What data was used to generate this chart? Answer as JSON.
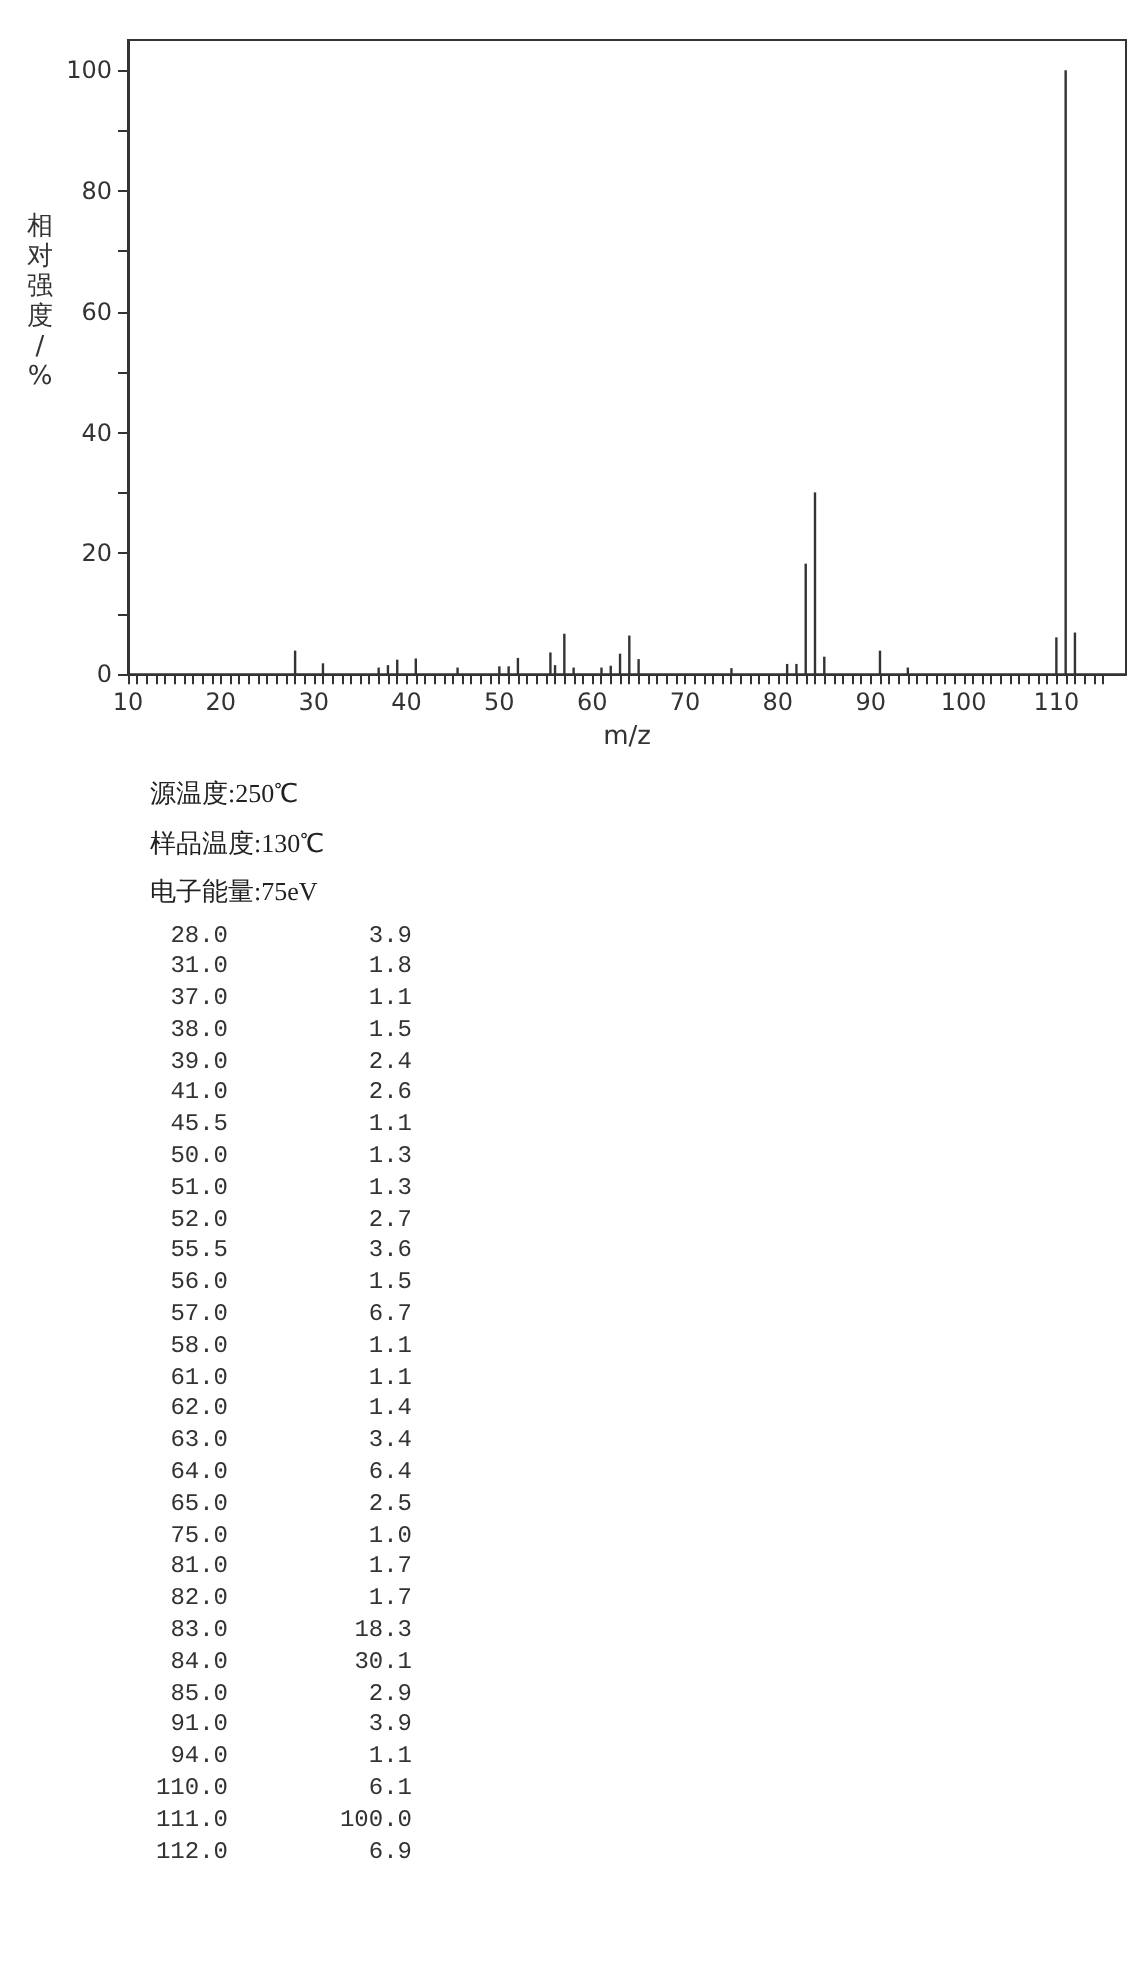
{
  "chart_data": [
    {
      "type": "bar",
      "xlabel": "m/z",
      "ylabel": "相对强度/%",
      "x": [
        28.0,
        31.0,
        37.0,
        38.0,
        39.0,
        41.0,
        45.5,
        50.0,
        51.0,
        52.0,
        55.5,
        56.0,
        57.0,
        58.0,
        61.0,
        62.0,
        63.0,
        64.0,
        65.0,
        75.0,
        81.0,
        82.0,
        83.0,
        84.0,
        85.0,
        91.0,
        94.0,
        110.0,
        111.0,
        112.0
      ],
      "values": [
        3.9,
        1.8,
        1.1,
        1.5,
        2.4,
        2.6,
        1.1,
        1.3,
        1.3,
        2.7,
        3.6,
        1.5,
        6.7,
        1.1,
        1.1,
        1.4,
        3.4,
        6.4,
        2.5,
        1.0,
        1.7,
        1.7,
        18.3,
        30.1,
        2.9,
        3.9,
        1.1,
        6.1,
        100.0,
        6.9
      ],
      "color": "#333333",
      "xlim": [
        10,
        117.5
      ],
      "xticks": [
        10,
        {
          "value": 11,
          "label": null
        },
        {
          "value": 12,
          "label": null
        },
        {
          "value": 13,
          "label": null
        },
        {
          "value": 14,
          "label": null
        },
        {
          "value": 15,
          "label": null
        },
        {
          "value": 16,
          "label": null
        },
        {
          "value": 17,
          "label": null
        },
        {
          "value": 18,
          "label": null
        },
        {
          "value": 19,
          "label": null
        },
        20,
        {
          "value": 21,
          "label": null
        },
        {
          "value": 22,
          "label": null
        },
        {
          "value": 23,
          "label": null
        },
        {
          "value": 24,
          "label": null
        },
        {
          "value": 25,
          "label": null
        },
        {
          "value": 26,
          "label": null
        },
        {
          "value": 27,
          "label": null
        },
        {
          "value": 28,
          "label": null
        },
        {
          "value": 29,
          "label": null
        },
        30,
        {
          "value": 31,
          "label": null
        },
        {
          "value": 32,
          "label": null
        },
        {
          "value": 33,
          "label": null
        },
        {
          "value": 34,
          "label": null
        },
        {
          "value": 35,
          "label": null
        },
        {
          "value": 36,
          "label": null
        },
        {
          "value": 37,
          "label": null
        },
        {
          "value": 38,
          "label": null
        },
        {
          "value": 39,
          "label": null
        },
        40,
        {
          "value": 41,
          "label": null
        },
        {
          "value": 42,
          "label": null
        },
        {
          "value": 43,
          "label": null
        },
        {
          "value": 44,
          "label": null
        },
        {
          "value": 45,
          "label": null
        },
        {
          "value": 46,
          "label": null
        },
        {
          "value": 47,
          "label": null
        },
        {
          "value": 48,
          "label": null
        },
        {
          "value": 49,
          "label": null
        },
        50,
        {
          "value": 51,
          "label": null
        },
        {
          "value": 52,
          "label": null
        },
        {
          "value": 53,
          "label": null
        },
        {
          "value": 54,
          "label": null
        },
        {
          "value": 55,
          "label": null
        },
        {
          "value": 56,
          "label": null
        },
        {
          "value": 57,
          "label": null
        },
        {
          "value": 58,
          "label": null
        },
        {
          "value": 59,
          "label": null
        },
        60,
        {
          "value": 61,
          "label": null
        },
        {
          "value": 62,
          "label": null
        },
        {
          "value": 63,
          "label": null
        },
        {
          "value": 64,
          "label": null
        },
        {
          "value": 65,
          "label": null
        },
        {
          "value": 66,
          "label": null
        },
        {
          "value": 67,
          "label": null
        },
        {
          "value": 68,
          "label": null
        },
        {
          "value": 69,
          "label": null
        },
        70,
        {
          "value": 71,
          "label": null
        },
        {
          "value": 72,
          "label": null
        },
        {
          "value": 73,
          "label": null
        },
        {
          "value": 74,
          "label": null
        },
        {
          "value": 75,
          "label": null
        },
        {
          "value": 76,
          "label": null
        },
        {
          "value": 77,
          "label": null
        },
        {
          "value": 78,
          "label": null
        },
        {
          "value": 79,
          "label": null
        },
        80,
        {
          "value": 81,
          "label": null
        },
        {
          "value": 82,
          "label": null
        },
        {
          "value": 83,
          "label": null
        },
        {
          "value": 84,
          "label": null
        },
        {
          "value": 85,
          "label": null
        },
        {
          "value": 86,
          "label": null
        },
        {
          "value": 87,
          "label": null
        },
        {
          "value": 88,
          "label": null
        },
        {
          "value": 89,
          "label": null
        },
        90,
        {
          "value": 91,
          "label": null
        },
        {
          "value": 92,
          "label": null
        },
        {
          "value": 93,
          "label": null
        },
        {
          "value": 94,
          "label": null
        },
        {
          "value": 95,
          "label": null
        },
        {
          "value": 96,
          "label": null
        },
        {
          "value": 97,
          "label": null
        },
        {
          "value": 98,
          "label": null
        },
        {
          "value": 99,
          "label": null
        },
        100,
        {
          "value": 101,
          "label": null
        },
        {
          "value": 102,
          "label": null
        },
        {
          "value": 103,
          "label": null
        },
        {
          "value": 104,
          "label": null
        },
        {
          "value": 105,
          "label": null
        },
        {
          "value": 106,
          "label": null
        },
        {
          "value": 107,
          "label": null
        },
        {
          "value": 108,
          "label": null
        },
        {
          "value": 109,
          "label": null
        },
        110,
        {
          "value": 111,
          "label": null
        },
        {
          "value": 112,
          "label": null
        },
        {
          "value": 113,
          "label": null
        },
        {
          "value": 114,
          "label": null
        },
        {
          "value": 115,
          "label": null
        }
      ],
      "ylim": [
        0,
        105
      ],
      "yticks": [
        0,
        {
          "value": 10,
          "label": null
        },
        20,
        {
          "value": 30,
          "label": null
        },
        40,
        {
          "value": 50,
          "label": null
        },
        60,
        {
          "value": 70,
          "label": null
        },
        80,
        {
          "value": 90,
          "label": null
        },
        100
      ]
    },
    {
      "type": "other",
      "annotations": [
        "源温度:250℃",
        "样品温度:130℃",
        "电子能量:75eV"
      ],
      "categories": [
        "28.0",
        "31.0",
        "37.0",
        "38.0",
        "39.0",
        "41.0",
        "45.5",
        "50.0",
        "51.0",
        "52.0",
        "55.5",
        "56.0",
        "57.0",
        "58.0",
        "61.0",
        "62.0",
        "63.0",
        "64.0",
        "65.0",
        "75.0",
        "81.0",
        "82.0",
        "83.0",
        "84.0",
        "85.0",
        "91.0",
        "94.0",
        "110.0",
        "111.0",
        "112.0"
      ],
      "value_labels": [
        "3.9",
        "1.8",
        "1.1",
        "1.5",
        "2.4",
        "2.6",
        "1.1",
        "1.3",
        "1.3",
        "2.7",
        "3.6",
        "1.5",
        "6.7",
        "1.1",
        "1.1",
        "1.4",
        "3.4",
        "6.4",
        "2.5",
        "1.0",
        "1.7",
        "1.7",
        "18.3",
        "30.1",
        "2.9",
        "3.9",
        "1.1",
        "6.1",
        "100.0",
        "6.9"
      ]
    }
  ]
}
